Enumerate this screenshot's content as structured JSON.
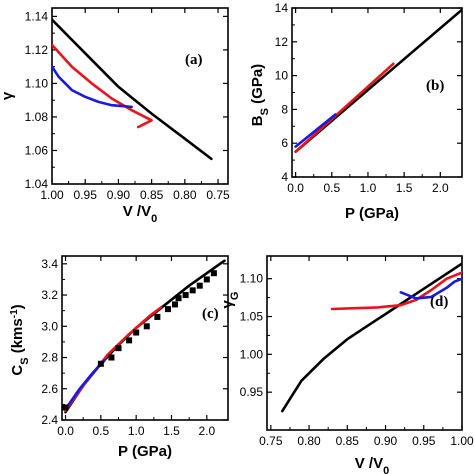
{
  "chart_data": [
    {
      "type": "line",
      "panel": "(a)",
      "xlabel": "V /V0",
      "xlabel_main": "V /V",
      "xlabel_sub": "0",
      "ylabel": "γ",
      "xlim": [
        1.0,
        0.735
      ],
      "ylim": [
        1.04,
        1.145
      ],
      "x_reversed": true,
      "xticks": [
        1.0,
        0.95,
        0.9,
        0.85,
        0.8,
        0.75
      ],
      "xtick_labels": [
        "1.00",
        "0.95",
        "0.90",
        "0.85",
        "0.80",
        "0.75"
      ],
      "yticks": [
        1.04,
        1.06,
        1.08,
        1.1,
        1.12,
        1.14
      ],
      "ytick_labels": [
        "1.04",
        "1.06",
        "1.08",
        "1.10",
        "1.12",
        "1.14"
      ],
      "series": [
        {
          "color": "#000000",
          "x": [
            1.0,
            0.95,
            0.9,
            0.85,
            0.8,
            0.76
          ],
          "y": [
            1.138,
            1.118,
            1.098,
            1.082,
            1.067,
            1.055
          ]
        },
        {
          "color": "#e8141c",
          "x": [
            1.0,
            0.97,
            0.94,
            0.91,
            0.88,
            0.85,
            0.87
          ],
          "y": [
            1.123,
            1.11,
            1.1,
            1.091,
            1.084,
            1.078,
            1.074
          ]
        },
        {
          "color": "#1a1adc",
          "x": [
            1.0,
            0.99,
            0.97,
            0.95,
            0.93,
            0.91,
            0.88
          ],
          "y": [
            1.11,
            1.104,
            1.096,
            1.092,
            1.089,
            1.087,
            1.086
          ]
        }
      ]
    },
    {
      "type": "line",
      "panel": "(b)",
      "xlabel": "P (GPa)",
      "ylabel": "BS (GPa)",
      "ylabel_main": "B",
      "ylabel_sub": "S",
      "ylabel_rest": " (GPa)",
      "xlim": [
        -0.05,
        2.3
      ],
      "ylim": [
        4,
        14
      ],
      "xticks": [
        0.0,
        0.5,
        1.0,
        1.5,
        2.0
      ],
      "xtick_labels": [
        "0.0",
        "0.5",
        "1.0",
        "1.5",
        "2.0"
      ],
      "yticks": [
        4,
        6,
        8,
        10,
        12,
        14
      ],
      "ytick_labels": [
        "4",
        "6",
        "8",
        "10",
        "12",
        "14"
      ],
      "series": [
        {
          "color": "#000000",
          "x": [
            0.0,
            2.3
          ],
          "y": [
            5.5,
            13.9
          ]
        },
        {
          "color": "#e8141c",
          "x": [
            0.0,
            1.35
          ],
          "y": [
            5.5,
            10.7
          ]
        },
        {
          "color": "#1a1adc",
          "x": [
            0.0,
            0.55
          ],
          "y": [
            5.8,
            7.7
          ]
        }
      ]
    },
    {
      "type": "line",
      "panel": "(c)",
      "xlabel": "P (GPa)",
      "ylabel": "CS (kms-1)",
      "ylabel_main": "C",
      "ylabel_sub": "S",
      "ylabel_rest": " (kms",
      "ylabel_sup": "-1",
      "ylabel_end": ")",
      "xlim": [
        -0.05,
        2.3
      ],
      "ylim": [
        2.4,
        3.45
      ],
      "xticks": [
        0.0,
        0.5,
        1.0,
        1.5,
        2.0
      ],
      "xtick_labels": [
        "0.0",
        "0.5",
        "1.0",
        "1.5",
        "2.0"
      ],
      "yticks": [
        2.4,
        2.6,
        2.8,
        3.0,
        3.2,
        3.4
      ],
      "ytick_labels": [
        "2.4",
        "2.6",
        "2.8",
        "3.0",
        "3.2",
        "3.4"
      ],
      "series": [
        {
          "color": "#000000",
          "x": [
            0.0,
            0.25,
            0.5,
            0.75,
            1.0,
            1.25,
            1.5,
            1.75,
            2.0,
            2.25
          ],
          "y": [
            2.45,
            2.62,
            2.76,
            2.88,
            2.99,
            3.08,
            3.17,
            3.26,
            3.34,
            3.42
          ]
        },
        {
          "color": "#e8141c",
          "x": [
            0.0,
            0.3,
            0.6,
            0.9,
            1.2,
            1.35
          ],
          "y": [
            2.46,
            2.65,
            2.82,
            2.95,
            3.07,
            3.12
          ]
        },
        {
          "color": "#1a1adc",
          "x": [
            0.0,
            0.2,
            0.4,
            0.55
          ],
          "y": [
            2.47,
            2.6,
            2.71,
            2.78
          ]
        }
      ],
      "markers": {
        "color": "#000000",
        "x": [
          0.0,
          0.5,
          0.65,
          0.75,
          0.9,
          1.0,
          1.15,
          1.3,
          1.45,
          1.55,
          1.6,
          1.7,
          1.8,
          1.9,
          2.0,
          2.1
        ],
        "y": [
          2.48,
          2.76,
          2.8,
          2.86,
          2.91,
          2.96,
          3.0,
          3.06,
          3.11,
          3.14,
          3.18,
          3.2,
          3.23,
          3.26,
          3.3,
          3.34
        ]
      }
    },
    {
      "type": "line",
      "panel": "(d)",
      "xlabel": "V /V0",
      "xlabel_main": "V /V",
      "xlabel_sub": "0",
      "ylabel": "γG",
      "ylabel_main": "γ",
      "ylabel_sub": "G",
      "xlim": [
        0.745,
        1.0
      ],
      "ylim": [
        0.9,
        1.13
      ],
      "xticks": [
        0.75,
        0.8,
        0.85,
        0.9,
        0.95,
        1.0
      ],
      "xtick_labels": [
        "0.75",
        "0.80",
        "0.85",
        "0.90",
        "0.95",
        "1.00"
      ],
      "yticks": [
        0.95,
        1.0,
        1.05,
        1.1
      ],
      "ytick_labels": [
        "0.95",
        "1.00",
        "1.05",
        "1.10"
      ],
      "series": [
        {
          "color": "#000000",
          "x": [
            0.765,
            0.79,
            0.82,
            0.85,
            0.88,
            0.91,
            0.94,
            0.97,
            1.0
          ],
          "y": [
            0.925,
            0.965,
            0.995,
            1.02,
            1.04,
            1.06,
            1.08,
            1.1,
            1.12
          ]
        },
        {
          "color": "#e8141c",
          "x": [
            0.83,
            0.86,
            0.89,
            0.92,
            0.94,
            0.96,
            0.98,
            1.0
          ],
          "y": [
            1.06,
            1.061,
            1.062,
            1.065,
            1.072,
            1.085,
            1.1,
            1.108
          ]
        },
        {
          "color": "#1a1adc",
          "x": [
            0.92,
            0.94,
            0.96,
            0.98,
            0.99,
            1.0
          ],
          "y": [
            1.082,
            1.074,
            1.076,
            1.088,
            1.096,
            1.1
          ]
        }
      ]
    }
  ]
}
